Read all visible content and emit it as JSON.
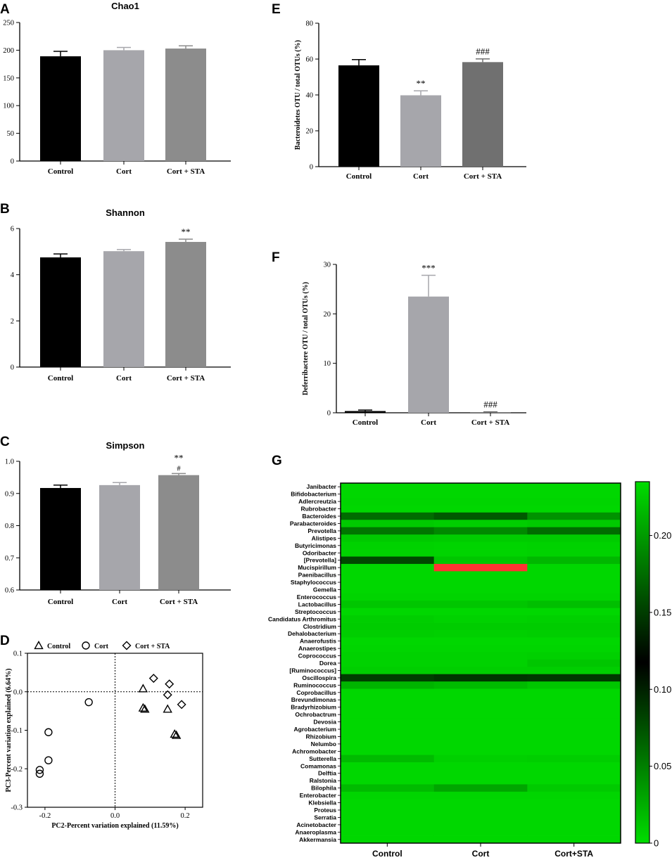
{
  "chart_data": [
    {
      "panel": "A",
      "type": "bar",
      "title": "Chao1",
      "ylabel": "",
      "categories": [
        "Control",
        "Cort",
        "Cort + STA"
      ],
      "values": [
        189,
        200,
        203
      ],
      "errors": [
        9,
        5,
        5
      ],
      "annotations": [
        "",
        "",
        ""
      ],
      "sub_annotations": [
        "",
        "",
        ""
      ],
      "ylim": [
        0,
        250
      ],
      "yticks": [
        0,
        50,
        100,
        150,
        200,
        250
      ],
      "colors": [
        "#000000",
        "#a6a6ab",
        "#8c8c8c"
      ]
    },
    {
      "panel": "B",
      "type": "bar",
      "title": "Shannon",
      "ylabel": "",
      "categories": [
        "Control",
        "Cort",
        "Cort + STA"
      ],
      "values": [
        4.75,
        5.02,
        5.42
      ],
      "errors": [
        0.15,
        0.07,
        0.12
      ],
      "annotations": [
        "",
        "",
        "**"
      ],
      "sub_annotations": [
        "",
        "",
        ""
      ],
      "ylim": [
        0,
        6
      ],
      "yticks": [
        0,
        2,
        4,
        6
      ],
      "colors": [
        "#000000",
        "#a6a6ab",
        "#8c8c8c"
      ]
    },
    {
      "panel": "C",
      "type": "bar",
      "title": "Simpson",
      "ylabel": "",
      "categories": [
        "Control",
        "Cort",
        "Cort + STA"
      ],
      "values": [
        0.917,
        0.926,
        0.957
      ],
      "errors": [
        0.009,
        0.008,
        0.005
      ],
      "annotations": [
        "",
        "",
        "**"
      ],
      "sub_annotations": [
        "",
        "",
        "#"
      ],
      "ylim": [
        0.6,
        1.0
      ],
      "yticks": [
        "0.6",
        "0.7",
        "0.8",
        "0.9",
        "1.0"
      ],
      "colors": [
        "#000000",
        "#a6a6ab",
        "#8c8c8c"
      ]
    },
    {
      "panel": "E",
      "type": "bar",
      "title": "",
      "ylabel": "Bacteroidetes OTU / total OTUs (%)",
      "categories": [
        "Control",
        "Cort",
        "Cort + STA"
      ],
      "values": [
        56.5,
        39.8,
        58.3
      ],
      "errors": [
        3.2,
        2.5,
        1.8
      ],
      "annotations": [
        "",
        "**",
        "###"
      ],
      "sub_annotations": [
        "",
        "",
        ""
      ],
      "ylim": [
        0,
        80
      ],
      "yticks": [
        0,
        20,
        40,
        60,
        80
      ],
      "colors": [
        "#000000",
        "#a6a6ab",
        "#707070"
      ]
    },
    {
      "panel": "F",
      "type": "bar",
      "title": "",
      "ylabel": "Deferribactere OTU / total OTUs (%)",
      "categories": [
        "Control",
        "Cort",
        "Cort + STA"
      ],
      "values": [
        0.35,
        23.5,
        0.1
      ],
      "errors": [
        0.2,
        4.3,
        0.1
      ],
      "annotations": [
        "",
        "***",
        "###"
      ],
      "sub_annotations": [
        "",
        "",
        ""
      ],
      "ylim": [
        0,
        30
      ],
      "yticks": [
        0,
        10,
        20,
        30
      ],
      "colors": [
        "#000000",
        "#a6a6ab",
        "#707070"
      ]
    },
    {
      "panel": "D",
      "type": "scatter",
      "title": "",
      "xlabel": "PC2-Percent variation explained (11.59%)",
      "ylabel": "PC3-Percent variation explained (6.64%)",
      "xlim": [
        -0.25,
        0.25
      ],
      "ylim": [
        -0.3,
        0.1
      ],
      "xticks": [
        "-0.2",
        "0.0",
        "0.2"
      ],
      "yticks": [
        "-0.3",
        "-0.2",
        "-0.1",
        "0.0",
        "0.1"
      ],
      "series": [
        {
          "name": "Control",
          "marker": "triangle",
          "points": [
            [
              0.08,
              0.008
            ],
            [
              0.085,
              -0.045
            ],
            [
              0.08,
              -0.042
            ],
            [
              0.15,
              -0.045
            ],
            [
              0.175,
              -0.113
            ],
            [
              0.17,
              -0.11
            ]
          ]
        },
        {
          "name": "Cort",
          "marker": "circle",
          "points": [
            [
              -0.075,
              -0.027
            ],
            [
              -0.19,
              -0.105
            ],
            [
              -0.19,
              -0.178
            ],
            [
              -0.215,
              -0.203
            ],
            [
              -0.215,
              -0.213
            ]
          ]
        },
        {
          "name": "Cort + STA",
          "marker": "diamond",
          "points": [
            [
              0.11,
              0.035
            ],
            [
              0.155,
              0.02
            ],
            [
              0.15,
              -0.008
            ],
            [
              0.19,
              -0.033
            ]
          ]
        }
      ]
    },
    {
      "panel": "G",
      "type": "heatmap",
      "title": "",
      "columns": [
        "Control",
        "Cort",
        "Cort+STA"
      ],
      "rows": [
        "Janibacter",
        "Bifidobacterium",
        "Adlercreutzia",
        "Rubrobacter",
        "Bacteroides",
        "Parabacteroides",
        "Prevotella",
        "Alistipes",
        "Butyricimonas",
        "Odoribacter",
        "[Prevotella]",
        "Mucispirillum",
        "Paenibacillus",
        "Staphylococcus",
        "Gemella",
        "Enterococcus",
        "Lactobacillus",
        "Streptococcus",
        "Candidatus Arthromitus",
        "Clostridium",
        "Dehalobacterium",
        "Anaerofustis",
        "Anaerostipes",
        "Coprococcus",
        "Dorea",
        "[Ruminococcus]",
        "Oscillospira",
        "Ruminococcus",
        "Coprobacillus",
        "Brevundimonas",
        "Bradyrhizobium",
        "Ochrobactrum",
        "Devosia",
        "Agrobacterium",
        "Rhizobium",
        "Nelumbo",
        "Achromobacter",
        "Sutterella",
        "Comamonas",
        "Delftia",
        "Ralstonia",
        "Bilophila",
        "Enterobacter",
        "Klebsiella",
        "Proteus",
        "Serratia",
        "Acinetobacter",
        "Anaeroplasma",
        "Akkermansia"
      ],
      "values": [
        [
          0.003,
          0.003,
          0.003
        ],
        [
          0.003,
          0.003,
          0.003
        ],
        [
          0.004,
          0.004,
          0.004
        ],
        [
          0.003,
          0.003,
          0.003
        ],
        [
          0.175,
          0.165,
          0.195
        ],
        [
          0.01,
          0.008,
          0.01
        ],
        [
          0.055,
          0.045,
          0.175
        ],
        [
          0.01,
          0.009,
          0.009
        ],
        [
          0.006,
          0.005,
          0.006
        ],
        [
          0.006,
          0.005,
          0.006
        ],
        [
          0.08,
          0.012,
          0.02
        ],
        [
          0.003,
          "over",
          0.003
        ],
        [
          0.003,
          0.003,
          0.003
        ],
        [
          0.003,
          0.003,
          0.003
        ],
        [
          0.003,
          0.003,
          0.003
        ],
        [
          0.005,
          0.005,
          0.005
        ],
        [
          0.012,
          0.012,
          0.016
        ],
        [
          0.003,
          0.003,
          0.003
        ],
        [
          0.008,
          0.006,
          0.007
        ],
        [
          0.009,
          0.009,
          0.009
        ],
        [
          0.008,
          0.007,
          0.008
        ],
        [
          0.003,
          0.003,
          0.003
        ],
        [
          0.004,
          0.004,
          0.004
        ],
        [
          0.006,
          0.006,
          0.007
        ],
        [
          0.006,
          0.006,
          0.012
        ],
        [
          0.008,
          0.008,
          0.008
        ],
        [
          0.085,
          0.09,
          0.088
        ],
        [
          0.022,
          0.018,
          0.012
        ],
        [
          0.003,
          0.003,
          0.003
        ],
        [
          0.003,
          0.003,
          0.003
        ],
        [
          0.003,
          0.003,
          0.003
        ],
        [
          0.003,
          0.003,
          0.003
        ],
        [
          0.003,
          0.003,
          0.003
        ],
        [
          0.003,
          0.003,
          0.003
        ],
        [
          0.003,
          0.003,
          0.003
        ],
        [
          0.003,
          0.003,
          0.003
        ],
        [
          0.003,
          0.003,
          0.003
        ],
        [
          0.018,
          0.007,
          0.008
        ],
        [
          0.003,
          0.003,
          0.003
        ],
        [
          0.003,
          0.003,
          0.003
        ],
        [
          0.003,
          0.003,
          0.003
        ],
        [
          0.018,
          0.03,
          0.01
        ],
        [
          0.004,
          0.004,
          0.004
        ],
        [
          0.003,
          0.003,
          0.003
        ],
        [
          0.003,
          0.003,
          0.003
        ],
        [
          0.003,
          0.003,
          0.003
        ],
        [
          0.003,
          0.003,
          0.003
        ],
        [
          0.003,
          0.003,
          0.003
        ],
        [
          0.003,
          0.003,
          0.003
        ]
      ],
      "colorbar": {
        "min": 0,
        "max": 0.235,
        "ticks": [
          "0",
          "0.05",
          "0.10",
          "0.15",
          "0.20"
        ],
        "low_color": "#00dd00",
        "mid_color": "#000000",
        "high_color": "#00dd00",
        "over_color": "#ff3333"
      }
    }
  ]
}
